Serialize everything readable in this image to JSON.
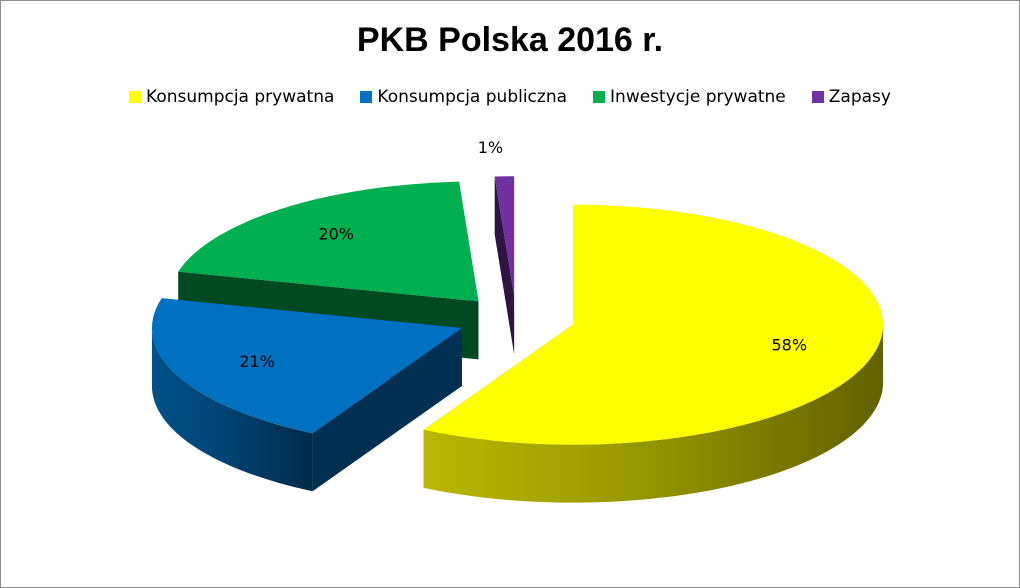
{
  "chart_data": {
    "type": "pie",
    "title": "PKB Polska 2016 r.",
    "legend_position": "top",
    "categories": [
      "Konsumpcja prywatna",
      "Konsumpcja publiczna",
      "Inwestycje prywatne",
      "Zapasy"
    ],
    "values": [
      58,
      21,
      20,
      1
    ],
    "value_labels": [
      "58%",
      "21%",
      "20%",
      "1%"
    ],
    "colors": [
      "#ffff00",
      "#0070c0",
      "#00b050",
      "#7030a0"
    ],
    "exploded": true,
    "perspective_3d": true
  }
}
